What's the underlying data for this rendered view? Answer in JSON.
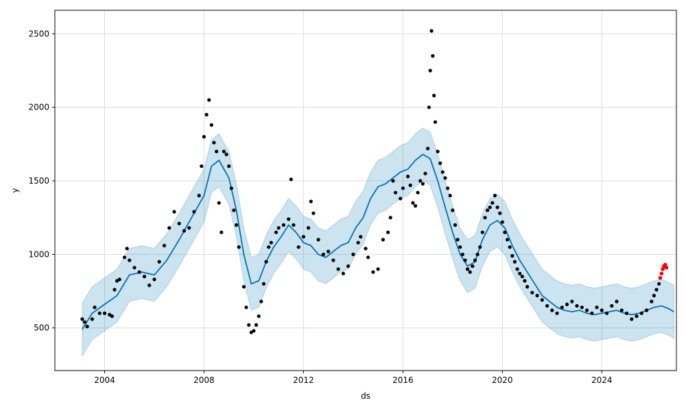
{
  "chart_data": {
    "type": "scatter",
    "title": "",
    "xlabel": "ds",
    "ylabel": "y",
    "x_type": "year",
    "xlim": [
      2002.0,
      2027.0
    ],
    "ylim": [
      210,
      2660
    ],
    "grid": true,
    "x_ticks": [
      2004,
      2008,
      2012,
      2016,
      2020,
      2024
    ],
    "y_ticks": [
      500,
      1000,
      1500,
      2000,
      2500
    ],
    "colors": {
      "observed": "#000000",
      "recent": "#ff0000",
      "forecast": "#0072B2",
      "interval": "#0072B2"
    },
    "series": [
      {
        "role": "observed",
        "points": [
          [
            2003.1,
            560
          ],
          [
            2003.2,
            540
          ],
          [
            2003.3,
            510
          ],
          [
            2003.5,
            560
          ],
          [
            2003.6,
            640
          ],
          [
            2003.8,
            600
          ],
          [
            2004.0,
            600
          ],
          [
            2004.2,
            590
          ],
          [
            2004.3,
            580
          ],
          [
            2004.4,
            760
          ],
          [
            2004.5,
            820
          ],
          [
            2004.6,
            830
          ],
          [
            2004.8,
            980
          ],
          [
            2004.9,
            1040
          ],
          [
            2005.0,
            960
          ],
          [
            2005.2,
            910
          ],
          [
            2005.4,
            880
          ],
          [
            2005.6,
            850
          ],
          [
            2005.8,
            790
          ],
          [
            2006.0,
            830
          ],
          [
            2006.2,
            950
          ],
          [
            2006.4,
            1060
          ],
          [
            2006.6,
            1180
          ],
          [
            2006.8,
            1290
          ],
          [
            2007.0,
            1210
          ],
          [
            2007.2,
            1160
          ],
          [
            2007.4,
            1180
          ],
          [
            2007.6,
            1290
          ],
          [
            2007.8,
            1400
          ],
          [
            2007.9,
            1600
          ],
          [
            2008.0,
            1800
          ],
          [
            2008.1,
            1950
          ],
          [
            2008.2,
            2050
          ],
          [
            2008.3,
            1880
          ],
          [
            2008.4,
            1760
          ],
          [
            2008.5,
            1700
          ],
          [
            2008.6,
            1350
          ],
          [
            2008.7,
            1150
          ],
          [
            2008.8,
            1700
          ],
          [
            2008.9,
            1680
          ],
          [
            2009.0,
            1600
          ],
          [
            2009.1,
            1450
          ],
          [
            2009.2,
            1300
          ],
          [
            2009.3,
            1200
          ],
          [
            2009.4,
            1050
          ],
          [
            2009.6,
            780
          ],
          [
            2009.7,
            640
          ],
          [
            2009.8,
            520
          ],
          [
            2009.9,
            470
          ],
          [
            2010.0,
            480
          ],
          [
            2010.1,
            520
          ],
          [
            2010.2,
            580
          ],
          [
            2010.3,
            680
          ],
          [
            2010.4,
            800
          ],
          [
            2010.5,
            950
          ],
          [
            2010.6,
            1050
          ],
          [
            2010.7,
            1080
          ],
          [
            2010.9,
            1150
          ],
          [
            2011.0,
            1180
          ],
          [
            2011.2,
            1200
          ],
          [
            2011.4,
            1240
          ],
          [
            2011.5,
            1510
          ],
          [
            2011.6,
            1200
          ],
          [
            2011.8,
            1050
          ],
          [
            2012.0,
            1120
          ],
          [
            2012.2,
            1180
          ],
          [
            2012.3,
            1360
          ],
          [
            2012.4,
            1280
          ],
          [
            2012.6,
            1100
          ],
          [
            2012.8,
            1000
          ],
          [
            2013.0,
            1020
          ],
          [
            2013.2,
            960
          ],
          [
            2013.4,
            900
          ],
          [
            2013.6,
            870
          ],
          [
            2013.8,
            920
          ],
          [
            2014.0,
            1000
          ],
          [
            2014.2,
            1080
          ],
          [
            2014.3,
            1120
          ],
          [
            2014.5,
            1040
          ],
          [
            2014.6,
            980
          ],
          [
            2014.8,
            880
          ],
          [
            2015.0,
            900
          ],
          [
            2015.2,
            1100
          ],
          [
            2015.4,
            1150
          ],
          [
            2015.5,
            1250
          ],
          [
            2015.6,
            1500
          ],
          [
            2015.7,
            1420
          ],
          [
            2015.9,
            1380
          ],
          [
            2016.0,
            1450
          ],
          [
            2016.2,
            1530
          ],
          [
            2016.3,
            1470
          ],
          [
            2016.4,
            1350
          ],
          [
            2016.5,
            1330
          ],
          [
            2016.6,
            1420
          ],
          [
            2016.7,
            1500
          ],
          [
            2016.8,
            1480
          ],
          [
            2016.9,
            1550
          ],
          [
            2017.0,
            1720
          ],
          [
            2017.05,
            2000
          ],
          [
            2017.1,
            2250
          ],
          [
            2017.15,
            2520
          ],
          [
            2017.2,
            2350
          ],
          [
            2017.25,
            2080
          ],
          [
            2017.3,
            1900
          ],
          [
            2017.4,
            1700
          ],
          [
            2017.5,
            1620
          ],
          [
            2017.6,
            1560
          ],
          [
            2017.7,
            1520
          ],
          [
            2017.8,
            1450
          ],
          [
            2017.9,
            1400
          ],
          [
            2018.0,
            1300
          ],
          [
            2018.1,
            1200
          ],
          [
            2018.2,
            1100
          ],
          [
            2018.3,
            1050
          ],
          [
            2018.4,
            1000
          ],
          [
            2018.5,
            960
          ],
          [
            2018.6,
            900
          ],
          [
            2018.7,
            880
          ],
          [
            2018.8,
            920
          ],
          [
            2018.9,
            960
          ],
          [
            2019.0,
            1000
          ],
          [
            2019.1,
            1050
          ],
          [
            2019.2,
            1150
          ],
          [
            2019.3,
            1250
          ],
          [
            2019.4,
            1300
          ],
          [
            2019.5,
            1320
          ],
          [
            2019.6,
            1350
          ],
          [
            2019.7,
            1400
          ],
          [
            2019.8,
            1320
          ],
          [
            2019.9,
            1280
          ],
          [
            2020.0,
            1220
          ],
          [
            2020.1,
            1150
          ],
          [
            2020.2,
            1100
          ],
          [
            2020.3,
            1050
          ],
          [
            2020.4,
            990
          ],
          [
            2020.5,
            950
          ],
          [
            2020.6,
            900
          ],
          [
            2020.7,
            870
          ],
          [
            2020.8,
            850
          ],
          [
            2020.9,
            820
          ],
          [
            2021.0,
            780
          ],
          [
            2021.2,
            740
          ],
          [
            2021.4,
            720
          ],
          [
            2021.6,
            690
          ],
          [
            2021.8,
            650
          ],
          [
            2022.0,
            620
          ],
          [
            2022.2,
            600
          ],
          [
            2022.4,
            640
          ],
          [
            2022.6,
            660
          ],
          [
            2022.8,
            680
          ],
          [
            2023.0,
            650
          ],
          [
            2023.2,
            640
          ],
          [
            2023.4,
            620
          ],
          [
            2023.6,
            600
          ],
          [
            2023.8,
            640
          ],
          [
            2024.0,
            620
          ],
          [
            2024.2,
            600
          ],
          [
            2024.4,
            650
          ],
          [
            2024.6,
            680
          ],
          [
            2024.8,
            620
          ],
          [
            2025.0,
            600
          ],
          [
            2025.2,
            560
          ],
          [
            2025.4,
            580
          ],
          [
            2025.6,
            600
          ],
          [
            2025.8,
            620
          ],
          [
            2026.0,
            680
          ],
          [
            2026.1,
            720
          ],
          [
            2026.2,
            760
          ],
          [
            2026.3,
            800
          ]
        ]
      },
      {
        "role": "recent",
        "points": [
          [
            2026.35,
            840
          ],
          [
            2026.4,
            870
          ],
          [
            2026.45,
            900
          ],
          [
            2026.5,
            920
          ],
          [
            2026.55,
            930
          ],
          [
            2026.6,
            910
          ]
        ]
      },
      {
        "role": "forecast",
        "points": [
          [
            2003.1,
            490
          ],
          [
            2003.5,
            600
          ],
          [
            2004.0,
            660
          ],
          [
            2004.5,
            720
          ],
          [
            2005.0,
            860
          ],
          [
            2005.5,
            880
          ],
          [
            2006.0,
            860
          ],
          [
            2006.5,
            960
          ],
          [
            2007.0,
            1100
          ],
          [
            2007.5,
            1250
          ],
          [
            2008.0,
            1400
          ],
          [
            2008.3,
            1600
          ],
          [
            2008.6,
            1640
          ],
          [
            2009.0,
            1520
          ],
          [
            2009.3,
            1300
          ],
          [
            2009.6,
            1000
          ],
          [
            2009.9,
            800
          ],
          [
            2010.2,
            820
          ],
          [
            2010.5,
            950
          ],
          [
            2010.8,
            1050
          ],
          [
            2011.1,
            1120
          ],
          [
            2011.4,
            1200
          ],
          [
            2011.7,
            1150
          ],
          [
            2012.0,
            1080
          ],
          [
            2012.3,
            1060
          ],
          [
            2012.6,
            1000
          ],
          [
            2012.9,
            980
          ],
          [
            2013.2,
            1020
          ],
          [
            2013.5,
            1060
          ],
          [
            2013.8,
            1080
          ],
          [
            2014.1,
            1180
          ],
          [
            2014.4,
            1250
          ],
          [
            2014.7,
            1380
          ],
          [
            2015.0,
            1460
          ],
          [
            2015.3,
            1480
          ],
          [
            2015.6,
            1520
          ],
          [
            2015.9,
            1560
          ],
          [
            2016.2,
            1580
          ],
          [
            2016.5,
            1640
          ],
          [
            2016.8,
            1680
          ],
          [
            2017.1,
            1650
          ],
          [
            2017.4,
            1500
          ],
          [
            2017.7,
            1320
          ],
          [
            2018.0,
            1150
          ],
          [
            2018.3,
            1000
          ],
          [
            2018.6,
            920
          ],
          [
            2018.9,
            950
          ],
          [
            2019.2,
            1100
          ],
          [
            2019.5,
            1200
          ],
          [
            2019.8,
            1230
          ],
          [
            2020.1,
            1180
          ],
          [
            2020.4,
            1060
          ],
          [
            2020.7,
            960
          ],
          [
            2021.0,
            880
          ],
          [
            2021.3,
            800
          ],
          [
            2021.6,
            720
          ],
          [
            2021.9,
            680
          ],
          [
            2022.2,
            640
          ],
          [
            2022.5,
            620
          ],
          [
            2022.8,
            610
          ],
          [
            2023.1,
            620
          ],
          [
            2023.4,
            600
          ],
          [
            2023.7,
            590
          ],
          [
            2024.0,
            600
          ],
          [
            2024.3,
            610
          ],
          [
            2024.6,
            620
          ],
          [
            2024.9,
            600
          ],
          [
            2025.2,
            590
          ],
          [
            2025.5,
            600
          ],
          [
            2025.8,
            620
          ],
          [
            2026.1,
            640
          ],
          [
            2026.4,
            650
          ],
          [
            2026.7,
            630
          ],
          [
            2026.9,
            610
          ]
        ]
      },
      {
        "role": "interval",
        "upper_offset": 180,
        "lower_offset": 180
      }
    ]
  }
}
